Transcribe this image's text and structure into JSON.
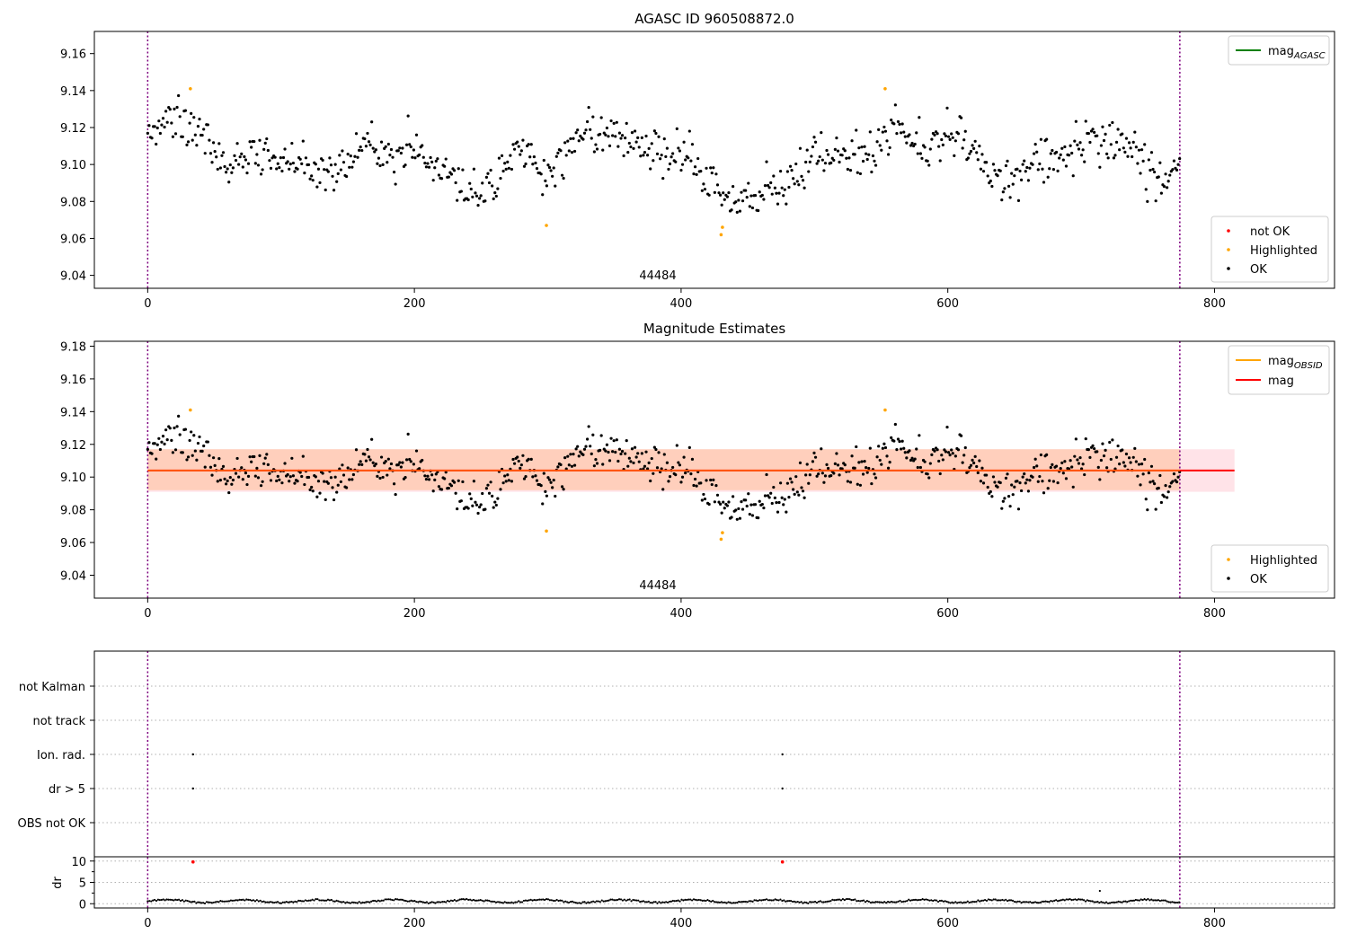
{
  "chart_data": [
    {
      "type": "scatter",
      "title": "AGASC ID 960508872.0",
      "xlim": [
        -40,
        890
      ],
      "ylim": [
        9.033,
        9.172
      ],
      "xticks": [
        0,
        200,
        400,
        600,
        800
      ],
      "yticks": [
        9.04,
        9.06,
        9.08,
        9.1,
        9.12,
        9.14,
        9.16
      ],
      "ytick_labels": [
        "9.04",
        "9.06",
        "9.08",
        "9.10",
        "9.12",
        "9.14",
        "9.16"
      ],
      "obsid_label": "44484",
      "obsid_boundaries": [
        0,
        774
      ],
      "legend_top": [
        {
          "name": "mag",
          "sub": "AGASC",
          "color": "#008000"
        }
      ],
      "legend_bottom": [
        {
          "name": "not OK",
          "color": "#ff0000"
        },
        {
          "name": "Highlighted",
          "color": "#ffa500"
        },
        {
          "name": "OK",
          "color": "#000000"
        }
      ],
      "highlighted_points": [
        [
          32,
          9.141
        ],
        [
          299,
          9.067
        ],
        [
          430,
          9.062
        ],
        [
          431,
          9.066
        ],
        [
          553,
          9.141
        ]
      ],
      "series_trend": {
        "name": "OK",
        "x": [
          0,
          20,
          40,
          60,
          80,
          100,
          120,
          140,
          160,
          180,
          200,
          220,
          240,
          260,
          280,
          300,
          320,
          340,
          360,
          380,
          400,
          420,
          440,
          460,
          480,
          500,
          520,
          540,
          560,
          580,
          600,
          620,
          640,
          660,
          680,
          700,
          720,
          740,
          760,
          774
        ],
        "y": [
          9.118,
          9.124,
          9.12,
          9.098,
          9.106,
          9.102,
          9.098,
          9.095,
          9.112,
          9.108,
          9.107,
          9.1,
          9.082,
          9.09,
          9.11,
          9.092,
          9.115,
          9.118,
          9.115,
          9.108,
          9.11,
          9.092,
          9.08,
          9.083,
          9.088,
          9.108,
          9.108,
          9.105,
          9.122,
          9.108,
          9.118,
          9.11,
          9.085,
          9.1,
          9.102,
          9.115,
          9.11,
          9.108,
          9.092,
          9.095
        ],
        "scatter": 0.0085
      }
    },
    {
      "type": "scatter",
      "title": "Magnitude Estimates",
      "xlim": [
        -40,
        890
      ],
      "ylim": [
        9.026,
        9.183
      ],
      "xticks": [
        0,
        200,
        400,
        600,
        800
      ],
      "yticks": [
        9.04,
        9.06,
        9.08,
        9.1,
        9.12,
        9.14,
        9.16,
        9.18
      ],
      "ytick_labels": [
        "9.04",
        "9.06",
        "9.08",
        "9.10",
        "9.12",
        "9.14",
        "9.16",
        "9.18"
      ],
      "obsid_label": "44484",
      "obsid_boundaries": [
        0,
        774
      ],
      "mag_line": 9.104,
      "mag_band": [
        9.091,
        9.117
      ],
      "obsid_band": [
        9.092,
        9.117
      ],
      "band_x": [
        0,
        815
      ],
      "legend_top": [
        {
          "name": "mag",
          "sub": "OBSID",
          "color": "#ffa500"
        },
        {
          "name": "mag",
          "sub": "",
          "color": "#ff0000"
        }
      ],
      "legend_bottom": [
        {
          "name": "Highlighted",
          "color": "#ffa500"
        },
        {
          "name": "OK",
          "color": "#000000"
        }
      ],
      "highlighted_points": [
        [
          32,
          9.141
        ],
        [
          299,
          9.067
        ],
        [
          430,
          9.062
        ],
        [
          431,
          9.066
        ],
        [
          553,
          9.141
        ]
      ]
    },
    {
      "type": "scatter",
      "flag_rows": [
        "not Kalman",
        "not track",
        "Ion. rad.",
        "dr > 5",
        "OBS not OK"
      ],
      "flag_points": [
        {
          "row": "Ion. rad.",
          "x": [
            34,
            476
          ]
        },
        {
          "row": "dr > 5",
          "x": [
            34,
            476
          ]
        }
      ],
      "xlim": [
        -40,
        890
      ],
      "xticks": [
        0,
        200,
        400,
        600,
        800
      ],
      "obsid_boundaries": [
        0,
        774
      ],
      "dr": {
        "ylabel": "dr",
        "ylim": [
          -1,
          11
        ],
        "yticks": [
          0,
          5,
          10
        ],
        "baseline": 0.6,
        "outliers": [
          [
            34,
            9.8
          ],
          [
            476,
            9.8
          ]
        ],
        "extra": [
          [
            714,
            3.0
          ]
        ]
      }
    }
  ]
}
